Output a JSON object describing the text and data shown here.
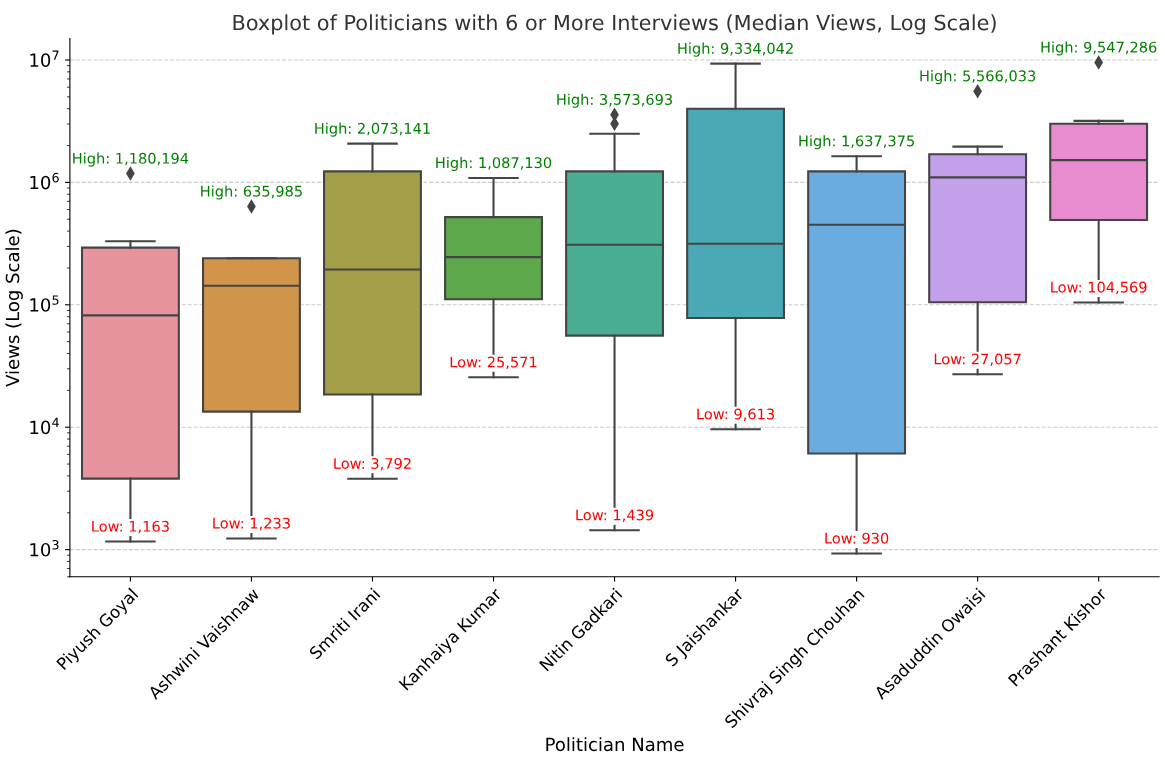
{
  "chart_data": {
    "type": "box",
    "title": "Boxplot of Politicians with 6 or More Interviews (Median Views, Log Scale)",
    "xlabel": "Politician Name",
    "ylabel": "Views (Log Scale)",
    "categories": [
      "Piyush Goyal",
      "Ashwini Vaishnaw",
      "Smriti Irani",
      "Kanhaiya Kumar",
      "Nitin Gadkari",
      "S Jaishankar",
      "Shivraj Singh Chouhan",
      "Asaduddin Owaisi",
      "Prashant Kishor"
    ],
    "colors": [
      "#e8949f",
      "#d0944b",
      "#a29f48",
      "#5ca84a",
      "#4aae94",
      "#4aa9b4",
      "#6aace0",
      "#c49fea",
      "#e88ccf"
    ],
    "boxes": [
      {
        "low": 1163,
        "q1": 3800,
        "median": 82000,
        "q3": 293000,
        "high": 331000,
        "outliers": [
          1180194
        ]
      },
      {
        "low": 1233,
        "q1": 13400,
        "median": 143000,
        "q3": 240000,
        "high": 240000,
        "outliers": [
          635985
        ]
      },
      {
        "low": 3792,
        "q1": 18500,
        "median": 194000,
        "q3": 1230000,
        "high": 2073141
      },
      {
        "low": 25571,
        "q1": 111000,
        "median": 245000,
        "q3": 520000,
        "high": 1087130
      },
      {
        "low": 1439,
        "q1": 56000,
        "median": 309000,
        "q3": 1230000,
        "high": 2500000,
        "outliers": [
          3010000,
          3573693
        ]
      },
      {
        "low": 9613,
        "q1": 78000,
        "median": 315000,
        "q3": 4000000,
        "high": 9334042
      },
      {
        "low": 930,
        "q1": 6100,
        "median": 451000,
        "q3": 1230000,
        "high": 1637375
      },
      {
        "low": 27057,
        "q1": 105000,
        "median": 1100000,
        "q3": 1700000,
        "high": 1960000,
        "outliers": [
          5566033
        ]
      },
      {
        "low": 104569,
        "q1": 493000,
        "median": 1520000,
        "q3": 3010000,
        "high": 3180000,
        "outliers": [
          9547286
        ]
      }
    ],
    "log": true,
    "ylim": [
      600,
      15000000
    ],
    "yticks": [
      {
        "value": 1000,
        "label": "10$^{3}$"
      },
      {
        "value": 10000,
        "label": "10$^{4}$"
      },
      {
        "value": 100000,
        "label": "10$^{5}$"
      },
      {
        "value": 1000000,
        "label": "10$^{6}$"
      },
      {
        "value": 10000000,
        "label": "10$^{7}$"
      }
    ],
    "grid": "y",
    "line_style": "dashed",
    "annotations": [
      "High: 1,180,194",
      "Low: 1,163",
      "High: 635,985",
      "Low: 1,233",
      "High: 2,073,141",
      "Low: 3,792",
      "High: 1,087,130",
      "Low: 25,571",
      "High: 3,573,693",
      "Low: 1,439",
      "High: 9,334,042",
      "Low: 9,613",
      "High: 1,637,375",
      "Low: 930",
      "High: 5,566,033",
      "Low: 27,057",
      "High: 9,547,286",
      "Low: 104,569"
    ]
  }
}
